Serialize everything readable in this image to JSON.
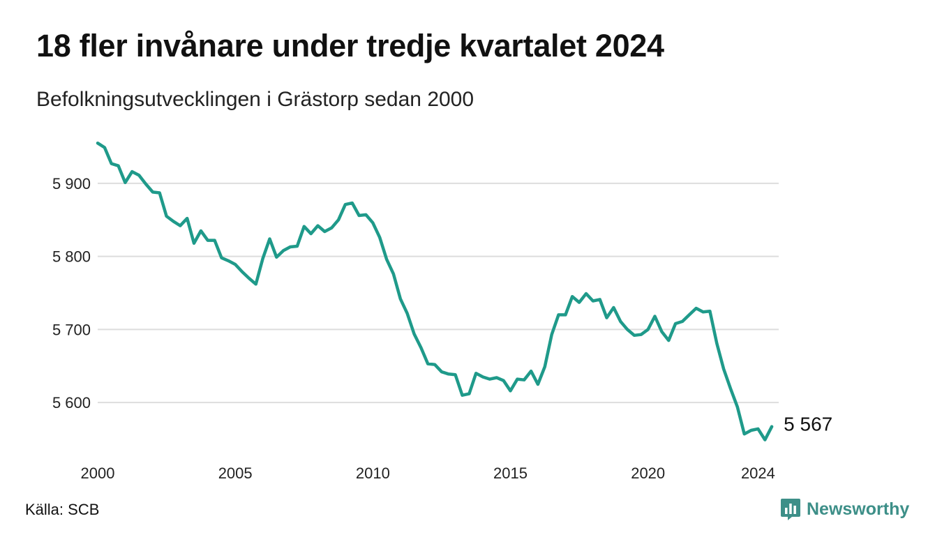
{
  "title": "18 fler invånare under tredje kvartalet 2024",
  "subtitle": "Befolkningsutvecklingen i Grästorp sedan 2000",
  "source": "Källa: SCB",
  "brand": {
    "name": "Newsworthy",
    "icon": "bar-chart-icon",
    "color": "#3d8f88"
  },
  "chart_data": {
    "type": "line",
    "title": "18 fler invånare under tredje kvartalet 2024",
    "subtitle": "Befolkningsutvecklingen i Grästorp sedan 2000",
    "xlabel": "",
    "ylabel": "",
    "xlim": [
      2000,
      2024.75
    ],
    "ylim": [
      5540,
      5960
    ],
    "x_ticks": [
      2000,
      2005,
      2010,
      2015,
      2020,
      2024
    ],
    "x_tick_labels": [
      "2000",
      "2005",
      "2010",
      "2015",
      "2020",
      "2024"
    ],
    "y_ticks": [
      5600,
      5700,
      5800,
      5900
    ],
    "y_tick_labels": [
      "5 600",
      "5 700",
      "5 800",
      "5 900"
    ],
    "grid": "horizontal",
    "line_color": "#1f9a8a",
    "last_value_label": "5 567",
    "series": [
      {
        "x": [
          "2000Q1",
          "2000Q2",
          "2000Q3",
          "2000Q4",
          "2001Q1",
          "2001Q2",
          "2001Q3",
          "2001Q4",
          "2002Q1",
          "2002Q2",
          "2002Q3",
          "2002Q4",
          "2003Q1",
          "2003Q2",
          "2003Q3",
          "2003Q4",
          "2004Q1",
          "2004Q2",
          "2004Q3",
          "2004Q4",
          "2005Q1",
          "2005Q2",
          "2005Q3",
          "2005Q4",
          "2006Q1",
          "2006Q2",
          "2006Q3",
          "2006Q4",
          "2007Q1",
          "2007Q2",
          "2007Q3",
          "2007Q4",
          "2008Q1",
          "2008Q2",
          "2008Q3",
          "2008Q4",
          "2009Q1",
          "2009Q2",
          "2009Q3",
          "2009Q4",
          "2010Q1",
          "2010Q2",
          "2010Q3",
          "2010Q4",
          "2011Q1",
          "2011Q2",
          "2011Q3",
          "2011Q4",
          "2012Q1",
          "2012Q2",
          "2012Q3",
          "2012Q4",
          "2013Q1",
          "2013Q2",
          "2013Q3",
          "2013Q4",
          "2014Q1",
          "2014Q2",
          "2014Q3",
          "2014Q4",
          "2015Q1",
          "2015Q2",
          "2015Q3",
          "2015Q4",
          "2016Q1",
          "2016Q2",
          "2016Q3",
          "2016Q4",
          "2017Q1",
          "2017Q2",
          "2017Q3",
          "2017Q4",
          "2018Q1",
          "2018Q2",
          "2018Q3",
          "2018Q4",
          "2019Q1",
          "2019Q2",
          "2019Q3",
          "2019Q4",
          "2020Q1",
          "2020Q2",
          "2020Q3",
          "2020Q4",
          "2021Q1",
          "2021Q2",
          "2021Q3",
          "2021Q4",
          "2022Q1",
          "2022Q2",
          "2022Q3",
          "2022Q4",
          "2023Q1",
          "2023Q2",
          "2023Q3",
          "2023Q4",
          "2024Q1",
          "2024Q2",
          "2024Q3"
        ],
        "values": [
          5955,
          5949,
          5927,
          5924,
          5901,
          5916,
          5911,
          5899,
          5888,
          5887,
          5855,
          5848,
          5842,
          5852,
          5818,
          5835,
          5822,
          5822,
          5798,
          5794,
          5789,
          5779,
          5770,
          5762,
          5797,
          5824,
          5799,
          5808,
          5813,
          5814,
          5841,
          5831,
          5842,
          5834,
          5839,
          5850,
          5871,
          5873,
          5856,
          5857,
          5846,
          5826,
          5796,
          5776,
          5742,
          5722,
          5694,
          5675,
          5653,
          5652,
          5642,
          5639,
          5638,
          5610,
          5612,
          5640,
          5635,
          5632,
          5634,
          5630,
          5616,
          5632,
          5631,
          5643,
          5625,
          5649,
          5693,
          5720,
          5720,
          5745,
          5737,
          5749,
          5739,
          5741,
          5716,
          5730,
          5711,
          5700,
          5692,
          5693,
          5700,
          5718,
          5697,
          5685,
          5708,
          5711,
          5720,
          5729,
          5724,
          5725,
          5681,
          5646,
          5619,
          5594,
          5557,
          5562,
          5564,
          5549,
          5567
        ]
      }
    ]
  }
}
